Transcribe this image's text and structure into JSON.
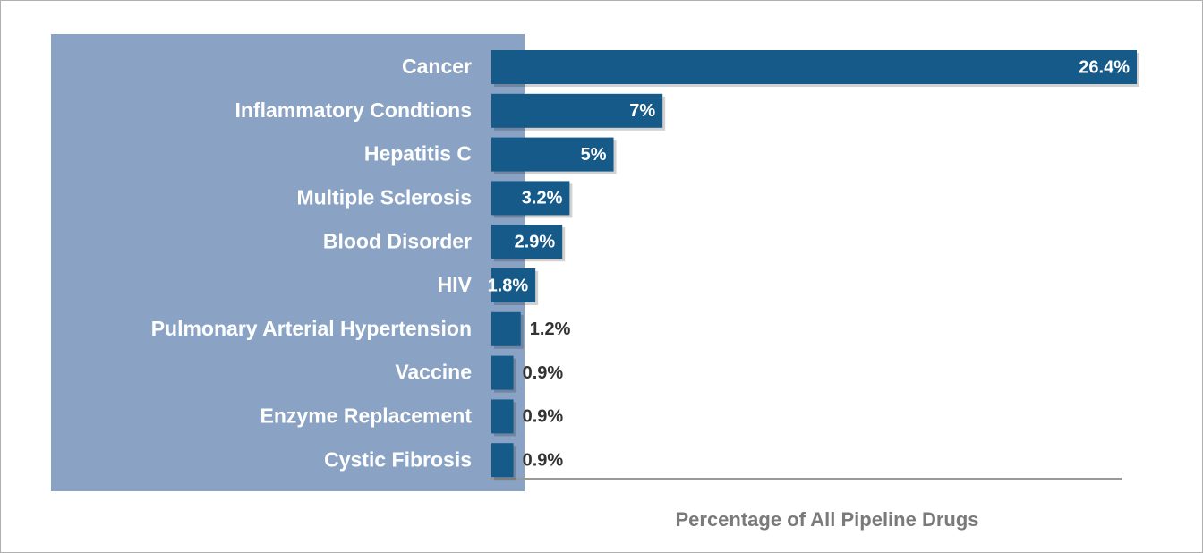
{
  "chart_data": {
    "type": "barh",
    "categories": [
      "Cancer",
      "Inflammatory Condtions",
      "Hepatitis C",
      "Multiple Sclerosis",
      "Blood Disorder",
      "HIV",
      "Pulmonary Arterial Hypertension",
      "Vaccine",
      "Enzyme Replacement",
      "Cystic Fibrosis"
    ],
    "values": [
      26.4,
      7,
      5,
      3.2,
      2.9,
      1.8,
      1.2,
      0.9,
      0.9,
      0.9
    ],
    "value_labels": [
      "26.4%",
      "7%",
      "5%",
      "3.2%",
      "2.9%",
      "1.8%",
      "1.2%",
      "0.9%",
      "0.9%",
      "0.9%"
    ],
    "color": "#165a8a",
    "xlim": [
      0,
      26.4
    ],
    "xlabel": "Percentage of All Pipeline Drugs"
  }
}
